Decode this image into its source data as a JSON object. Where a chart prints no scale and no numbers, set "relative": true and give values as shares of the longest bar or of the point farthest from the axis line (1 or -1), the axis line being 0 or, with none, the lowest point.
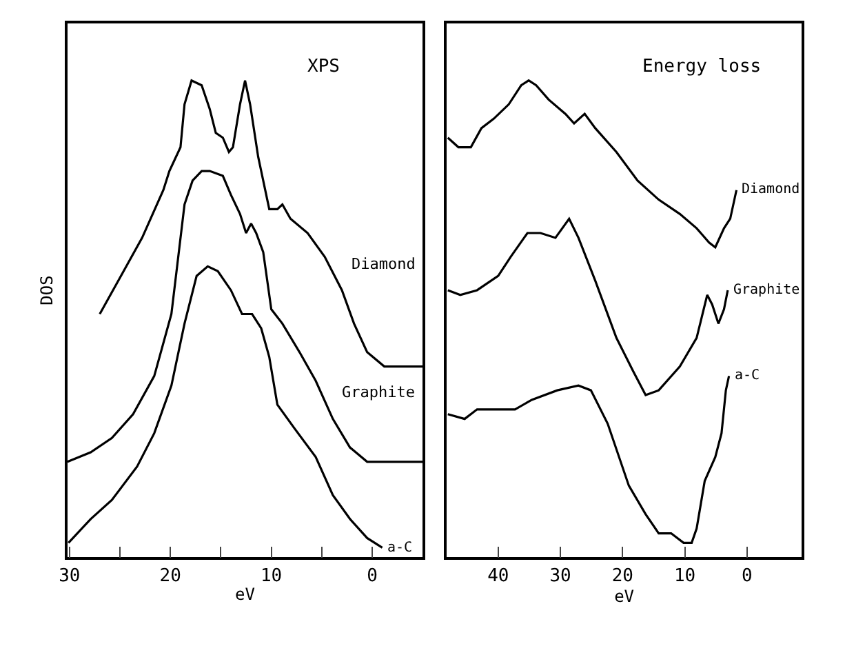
{
  "chart_data": [
    {
      "type": "line",
      "title": "XPS",
      "xlabel": "eV",
      "ylabel": "DOS",
      "relative": true,
      "xlim": [
        30.2,
        -5
      ],
      "xticks": [
        30,
        {
          "value": 25,
          "label": null
        },
        20,
        {
          "value": 15,
          "label": null
        },
        10,
        {
          "value": 5,
          "label": null
        },
        0
      ],
      "series": [
        {
          "name": "Diamond",
          "color": "#000000",
          "x": [
            27.0,
            24.9,
            22.8,
            20.7,
            20.1,
            19.0,
            18.6,
            17.9,
            16.9,
            16.1,
            15.5,
            14.8,
            14.2,
            13.8,
            13.1,
            12.6,
            12.1,
            11.3,
            10.2,
            9.4,
            8.9,
            8.1,
            6.4,
            4.7,
            3.0,
            1.8,
            0.5,
            -1.2,
            -5.0
          ],
          "values": [
            0.51,
            0.59,
            0.67,
            0.77,
            0.81,
            0.86,
            0.95,
            1.0,
            0.99,
            0.94,
            0.89,
            0.88,
            0.85,
            0.86,
            0.95,
            1.0,
            0.95,
            0.84,
            0.73,
            0.73,
            0.74,
            0.71,
            0.68,
            0.63,
            0.56,
            0.49,
            0.43,
            0.4,
            0.4
          ]
        },
        {
          "name": "Graphite",
          "color": "#000000",
          "x": [
            30.2,
            27.9,
            25.8,
            23.7,
            21.6,
            19.9,
            18.6,
            17.8,
            16.9,
            16.1,
            14.8,
            14.0,
            13.1,
            12.5,
            12.0,
            11.5,
            10.8,
            10.0,
            8.9,
            7.2,
            5.6,
            3.9,
            2.2,
            0.5,
            -1.2,
            -5.0
          ],
          "values": [
            0.2,
            0.22,
            0.25,
            0.3,
            0.38,
            0.51,
            0.74,
            0.79,
            0.81,
            0.81,
            0.8,
            0.76,
            0.72,
            0.68,
            0.7,
            0.68,
            0.64,
            0.52,
            0.49,
            0.43,
            0.37,
            0.29,
            0.23,
            0.2,
            0.2,
            0.2
          ]
        },
        {
          "name": "a-C",
          "color": "#000000",
          "x": [
            30.1,
            27.9,
            25.8,
            23.3,
            21.6,
            19.9,
            18.6,
            17.4,
            16.3,
            15.3,
            14.0,
            12.9,
            11.9,
            11.0,
            10.2,
            9.4,
            7.7,
            5.6,
            3.9,
            2.2,
            0.5,
            -1.0
          ],
          "values": [
            0.03,
            0.08,
            0.12,
            0.19,
            0.26,
            0.36,
            0.49,
            0.59,
            0.61,
            0.6,
            0.56,
            0.51,
            0.51,
            0.48,
            0.42,
            0.32,
            0.27,
            0.21,
            0.13,
            0.08,
            0.04,
            0.02
          ]
        }
      ]
    },
    {
      "type": "line",
      "title": "Energy loss",
      "xlabel": "eV",
      "relative": true,
      "xlim": [
        48.3,
        -8.8
      ],
      "xticks": [
        40,
        30,
        20,
        10,
        0
      ],
      "series": [
        {
          "name": "Diamond",
          "color": "#000000",
          "x": [
            48.1,
            46.4,
            44.4,
            42.7,
            40.7,
            38.3,
            36.3,
            35.1,
            33.9,
            31.9,
            29.2,
            27.8,
            26.1,
            24.4,
            21.0,
            17.6,
            14.2,
            10.8,
            8.1,
            6.1,
            5.1,
            3.7,
            2.7,
            1.7
          ],
          "values": [
            0.88,
            0.86,
            0.86,
            0.9,
            0.92,
            0.95,
            0.99,
            1.0,
            0.99,
            0.96,
            0.93,
            0.91,
            0.93,
            0.9,
            0.85,
            0.79,
            0.75,
            0.72,
            0.69,
            0.66,
            0.65,
            0.69,
            0.71,
            0.77
          ]
        },
        {
          "name": "Graphite",
          "color": "#000000",
          "x": [
            48.1,
            46.1,
            43.4,
            40.0,
            38.0,
            35.3,
            33.2,
            30.8,
            29.7,
            28.6,
            27.1,
            24.4,
            21.0,
            18.3,
            16.3,
            14.2,
            10.8,
            8.1,
            6.4,
            5.6,
            4.6,
            3.7,
            3.1
          ],
          "values": [
            0.56,
            0.55,
            0.56,
            0.59,
            0.63,
            0.68,
            0.68,
            0.67,
            0.69,
            0.71,
            0.67,
            0.58,
            0.46,
            0.39,
            0.34,
            0.35,
            0.4,
            0.46,
            0.55,
            0.53,
            0.49,
            0.52,
            0.56
          ]
        },
        {
          "name": "a-C",
          "color": "#000000",
          "x": [
            48.1,
            45.4,
            43.4,
            37.3,
            34.6,
            30.5,
            27.1,
            25.1,
            22.4,
            19.0,
            16.3,
            14.2,
            12.2,
            10.2,
            8.9,
            8.1,
            6.8,
            5.1,
            4.1,
            3.4,
            2.9
          ],
          "values": [
            0.3,
            0.29,
            0.31,
            0.31,
            0.33,
            0.35,
            0.36,
            0.35,
            0.28,
            0.15,
            0.09,
            0.05,
            0.05,
            0.03,
            0.03,
            0.06,
            0.16,
            0.21,
            0.26,
            0.35,
            0.38
          ]
        }
      ]
    }
  ]
}
